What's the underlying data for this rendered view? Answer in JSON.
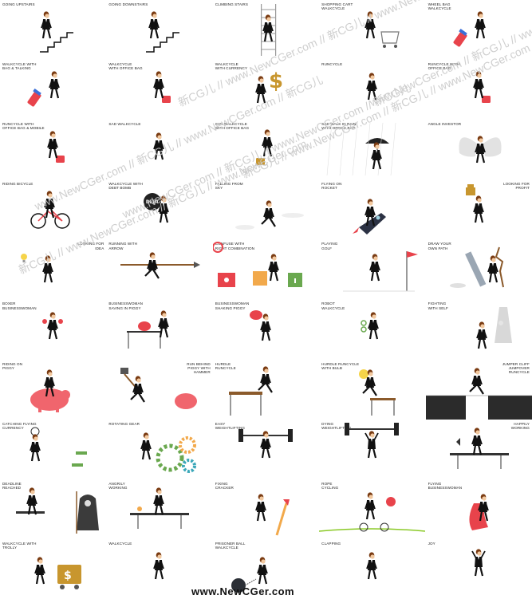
{
  "cells": [
    {
      "label": "GOING UPSTAIRS",
      "prop": "stairs-up"
    },
    {
      "label": "GOING DOWNSTAIRS",
      "prop": "stairs-down"
    },
    {
      "label": "CLIMBING STAIRS",
      "prop": "ladder"
    },
    {
      "label": "SHOPPING CART\nWALKCYCLE",
      "prop": "cart"
    },
    {
      "label": "WHEEL BAG\nWALKCYCLE",
      "prop": "wheelbag"
    },
    {
      "label": "WALKCYCLE WITH\nBAG & TALKING",
      "prop": "wheelbag"
    },
    {
      "label": "WALKCYCLE\nWITH OFFICE BAG",
      "prop": "bag"
    },
    {
      "label": "WALKCYCLE\nWITH CURRENCY",
      "prop": "dollar"
    },
    {
      "label": "RUNCYCLE",
      "prop": "none"
    },
    {
      "label": "RUNCYCLE WITH\nOFFICE BAG",
      "prop": "bag"
    },
    {
      "label": "RUNCYCLE WITH\nOFFICE BAG & MOBILE",
      "prop": "bag"
    },
    {
      "label": "SAD WALKCYCLE",
      "prop": "none"
    },
    {
      "label": "SAD WALKCYCLE\nWITH OFFICE BAG",
      "prop": "gold-bag"
    },
    {
      "label": "SAD WALK IN RAIN\nWITH OFFICE BAG",
      "prop": "umbrella"
    },
    {
      "label": "ANGLE INVESTOR",
      "prop": "wings"
    },
    {
      "label": "RIDING BICYCLE",
      "prop": "bicycle"
    },
    {
      "label": "WALKCYCLE WITH\nDEBT BOMB",
      "prop": "bomb"
    },
    {
      "label": "FALLING FROM\nSKY",
      "prop": "falling"
    },
    {
      "label": "FLYING ON\nROCKET",
      "prop": "rocket"
    },
    {
      "label": "LOOKING FOR\nPROFIT",
      "prop": "profit",
      "right": true
    },
    {
      "label": "LOOKING FOR\nIDEA",
      "prop": "idea",
      "right": true
    },
    {
      "label": "RUNNING WITH\nARROW",
      "prop": "arrow"
    },
    {
      "label": "CONFUSE WITH\nRIGHT COMBINATION",
      "prop": "locks"
    },
    {
      "label": "PLAYING\nGOLF",
      "prop": "golf"
    },
    {
      "label": "DRAW YOUR\nOWN PATH",
      "prop": "pencil"
    },
    {
      "label": "BOXER\nBUSINESSWOMAN",
      "prop": "boxer"
    },
    {
      "label": "BUSINESSWOMAN\nSAVING IN PIGGY",
      "prop": "table-piggy"
    },
    {
      "label": "BUSINESSWOMAN\nSHAKING PIGGY",
      "prop": "shake-piggy"
    },
    {
      "label": "ROBOT\nWALKCYCLE",
      "prop": "robot"
    },
    {
      "label": "FIGHTING\nWITH SELF",
      "prop": "shadow"
    },
    {
      "label": "RIDING ON\nPIGGY",
      "prop": "ride-piggy"
    },
    {
      "label": "RUN BEHIND\nPIGGY WITH\nHAMMER",
      "prop": "hammer-piggy",
      "right": true
    },
    {
      "label": "HURDLE\nRUNCYCLE",
      "prop": "hurdle"
    },
    {
      "label": "HURDLE RUNCYCLE\nWITH BULB",
      "prop": "hurdle-bulb"
    },
    {
      "label": "JUMPER CLIFF\nJUMPOVER\nRUNCYCLE",
      "prop": "cliff",
      "right": true
    },
    {
      "label": "CATCHING FLYING\nCURRENCY",
      "prop": "net"
    },
    {
      "label": "ROTATING GEAR",
      "prop": "gears"
    },
    {
      "label": "EASY\nWEIGHTLIFTING",
      "prop": "barbell"
    },
    {
      "label": "DYING\nWEIGHTLIFTING",
      "prop": "barbell-up"
    },
    {
      "label": "HAPPILY\nWORKING",
      "prop": "desk",
      "right": true
    },
    {
      "label": "DEADLINE\nREACHED",
      "prop": "reaper"
    },
    {
      "label": "ANGRILY\nWORKING",
      "prop": "desk-angry"
    },
    {
      "label": "FIXING\nCRACKER",
      "prop": "cracker"
    },
    {
      "label": "ROPE\nCYCLING",
      "prop": "rope"
    },
    {
      "label": "FLYING BUSINESSWOMAN",
      "prop": "cape"
    },
    {
      "label": "WALKCYCLE WITH\nTROLLY",
      "prop": "trolley"
    },
    {
      "label": "WALKCYCLE",
      "prop": "none"
    },
    {
      "label": "PRISONER BALL\nWALKCYCLE",
      "prop": "ball"
    },
    {
      "label": "CLAPPING",
      "prop": "none"
    },
    {
      "label": "JOY",
      "prop": "joy"
    }
  ],
  "watermarks": [
    "新CG儿 // www.NewCGer.com // 新CG儿 // www.NewCGer.com",
    "www.NewCGer.com // 新CG儿 // www.NewCGer.com // 新CG儿"
  ],
  "footer": "www.NewCGer.com",
  "colors": {
    "suit": "#111111",
    "skin": "#f2c9a0",
    "hair": "#7a3b12",
    "red": "#e8434b",
    "gold": "#c8962e",
    "teal": "#3aa7b9",
    "green": "#6aa84f"
  }
}
